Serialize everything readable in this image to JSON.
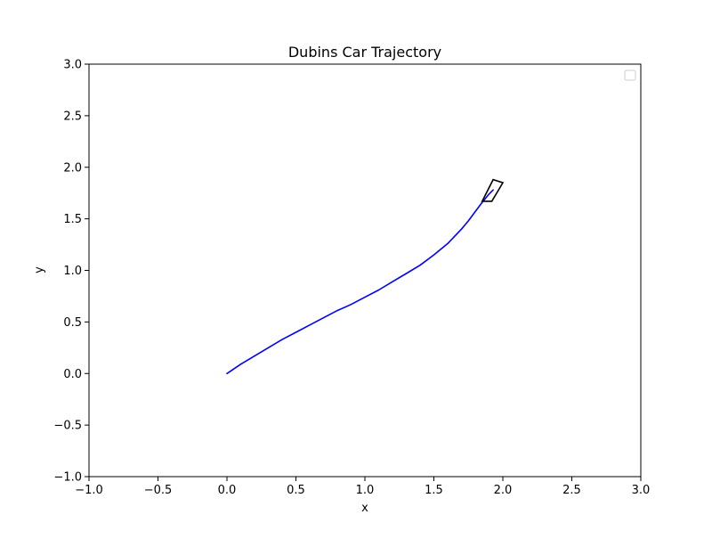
{
  "chart_data": {
    "type": "line",
    "title": "Dubins Car Trajectory",
    "xlabel": "x",
    "ylabel": "y",
    "xlim": [
      -1.0,
      3.0
    ],
    "ylim": [
      -1.0,
      3.0
    ],
    "xticks": [
      "−1.0",
      "−0.5",
      "0.0",
      "0.5",
      "1.0",
      "1.5",
      "2.0",
      "2.5",
      "3.0"
    ],
    "yticks": [
      "−1.0",
      "−0.5",
      "0.0",
      "0.5",
      "1.0",
      "1.5",
      "2.0",
      "2.5",
      "3.0"
    ],
    "xtick_values": [
      -1.0,
      -0.5,
      0.0,
      0.5,
      1.0,
      1.5,
      2.0,
      2.5,
      3.0
    ],
    "ytick_values": [
      -1.0,
      -0.5,
      0.0,
      0.5,
      1.0,
      1.5,
      2.0,
      2.5,
      3.0
    ],
    "grid": false,
    "legend": {
      "placement": "upper-right",
      "entries": []
    },
    "series": [
      {
        "color": "#0000ff",
        "x": [
          0.0,
          0.1,
          0.2,
          0.3,
          0.4,
          0.5,
          0.6,
          0.7,
          0.8,
          0.9,
          1.0,
          1.1,
          1.2,
          1.3,
          1.4,
          1.5,
          1.6,
          1.7,
          1.75,
          1.8,
          1.85,
          1.9,
          1.93
        ],
        "y": [
          0.0,
          0.09,
          0.17,
          0.25,
          0.33,
          0.4,
          0.47,
          0.54,
          0.61,
          0.67,
          0.74,
          0.81,
          0.89,
          0.97,
          1.05,
          1.15,
          1.26,
          1.4,
          1.48,
          1.57,
          1.66,
          1.74,
          1.78
        ]
      }
    ],
    "car": {
      "color": "#000000",
      "corners": [
        [
          1.85,
          1.67
        ],
        [
          1.93,
          1.88
        ],
        [
          2.0,
          1.85
        ],
        [
          1.92,
          1.67
        ]
      ]
    }
  }
}
